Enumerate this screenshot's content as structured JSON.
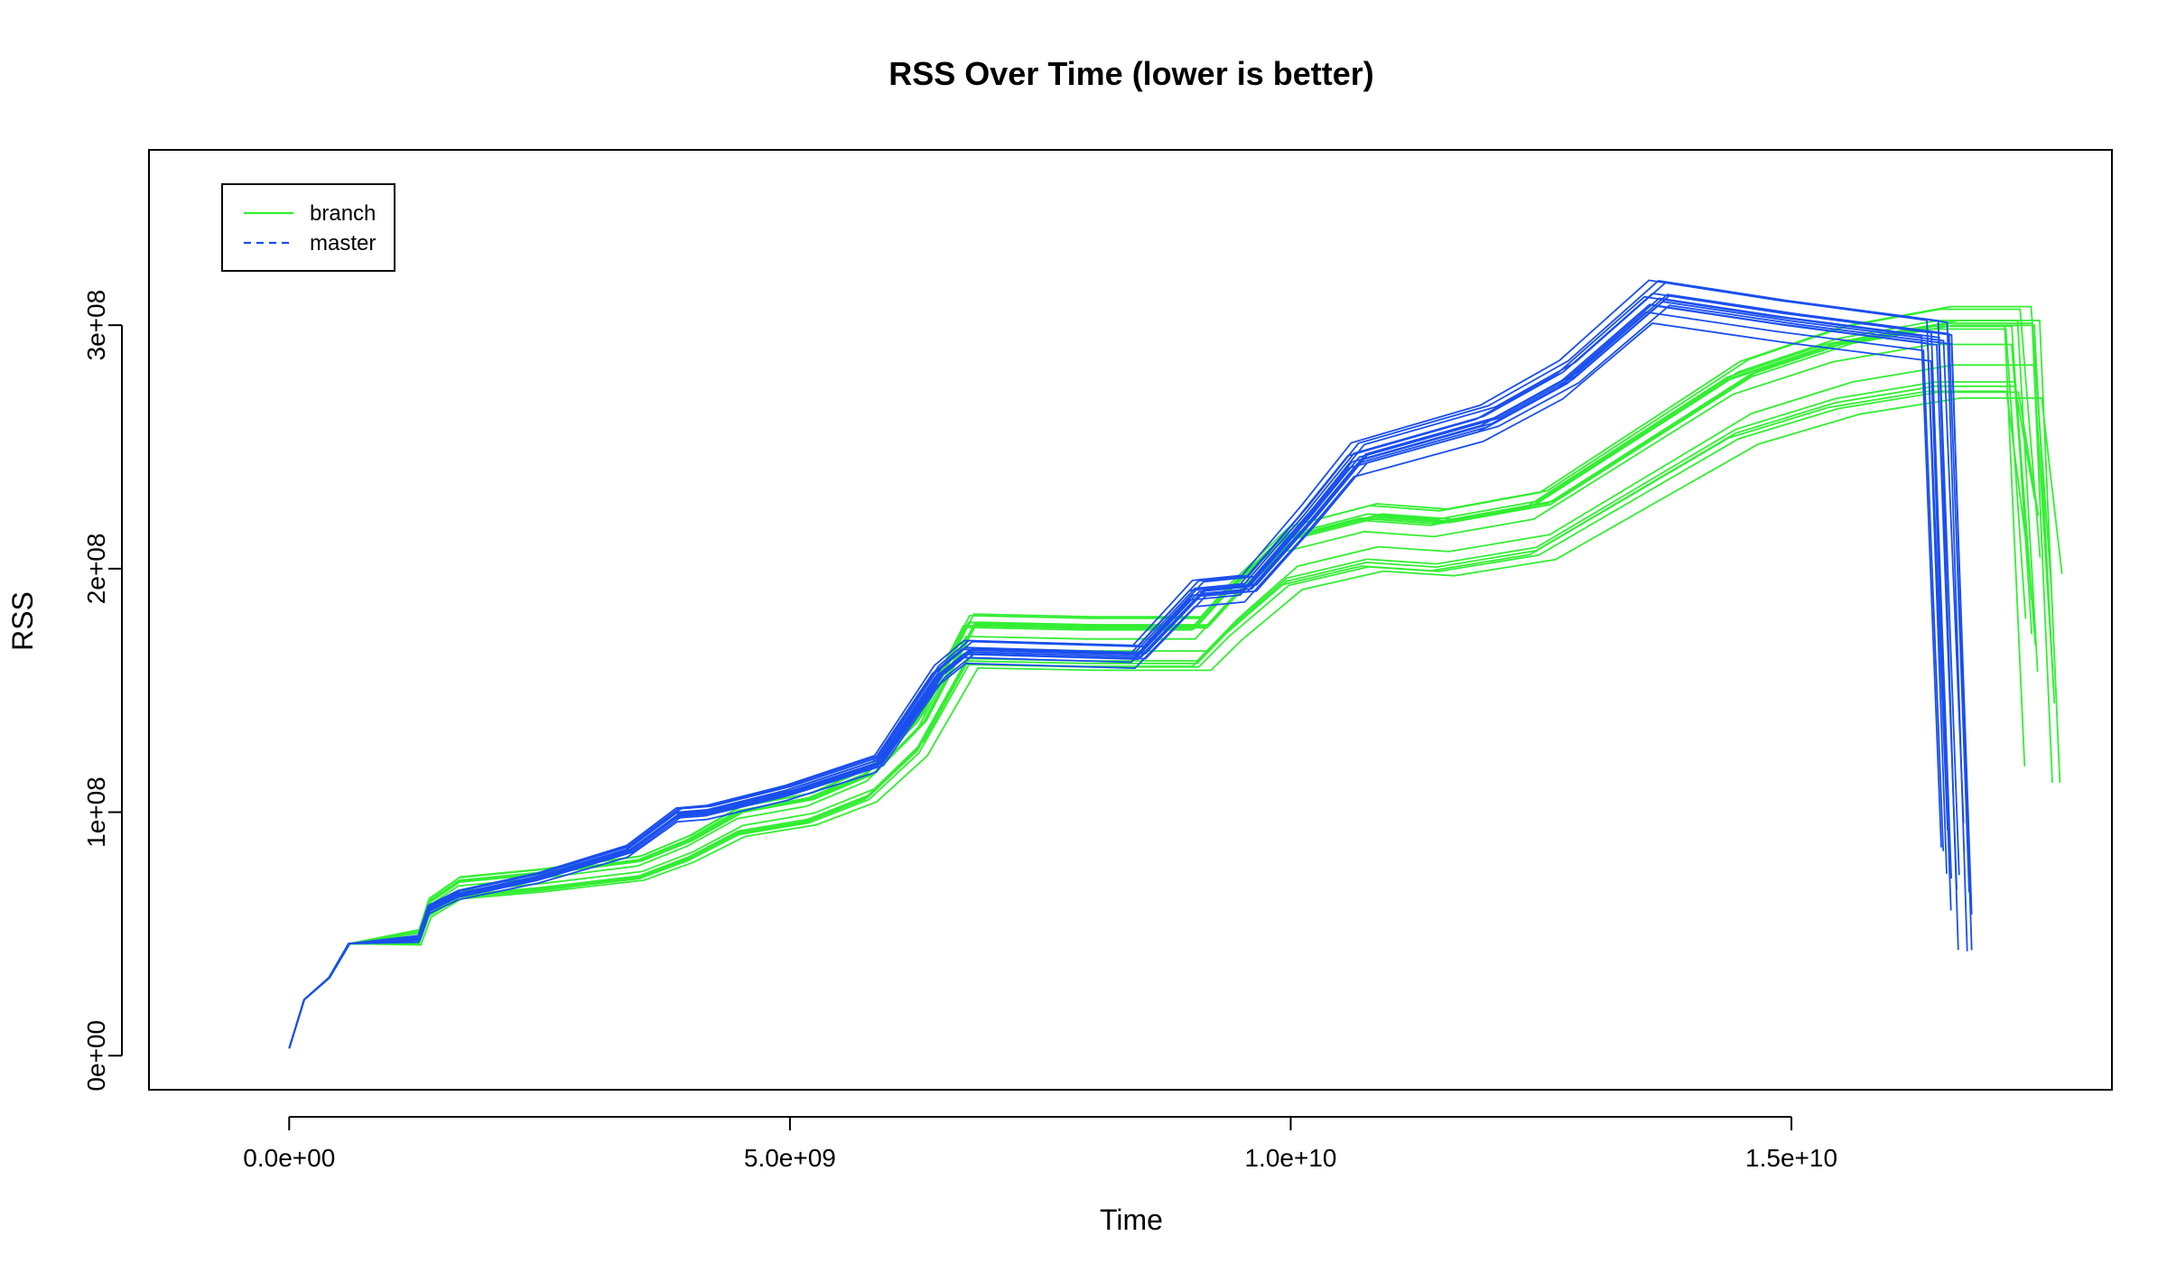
{
  "chart_data": {
    "type": "line",
    "title": "RSS Over Time (lower is better)",
    "xlabel": "Time",
    "ylabel": "RSS",
    "xlim": [
      -1400000000.0,
      18200000000.0
    ],
    "ylim": [
      -14000000.0,
      372000000.0
    ],
    "x_ticks": [
      0,
      5000000000.0,
      10000000000.0,
      15000000000.0
    ],
    "x_tick_labels": [
      "0.0e+00",
      "5.0e+09",
      "1.0e+10",
      "1.5e+10"
    ],
    "y_ticks": [
      0,
      100000000.0,
      200000000.0,
      300000000.0
    ],
    "y_tick_labels": [
      "0e+00",
      "1e+08",
      "2e+08",
      "3e+08"
    ],
    "grid": false,
    "legend_position": "top-left",
    "legend": [
      {
        "name": "branch",
        "color": "#33ee33",
        "line": "solid"
      },
      {
        "name": "master",
        "color": "#1a4fee",
        "line": "dashed"
      }
    ],
    "series": [
      {
        "name": "branch",
        "color": "#33ee33",
        "runs": 16,
        "representative": [
          [
            0,
            3000000.0
          ],
          [
            150000000.0,
            23000000.0
          ],
          [
            400000000.0,
            32000000.0
          ],
          [
            600000000.0,
            46000000.0
          ],
          [
            1300000000.0,
            48000000.0
          ],
          [
            1400000000.0,
            60000000.0
          ],
          [
            1700000000.0,
            68000000.0
          ],
          [
            2500000000.0,
            71000000.0
          ],
          [
            3500000000.0,
            76000000.0
          ],
          [
            4000000000.0,
            84000000.0
          ],
          [
            4500000000.0,
            95000000.0
          ],
          [
            5200000000.0,
            100000000.0
          ],
          [
            5800000000.0,
            110000000.0
          ],
          [
            6300000000.0,
            130000000.0
          ],
          [
            6800000000.0,
            168000000.0
          ],
          [
            8000000000.0,
            167000000.0
          ],
          [
            9100000000.0,
            167000000.0
          ],
          [
            9400000000.0,
            180000000.0
          ],
          [
            10000000000.0,
            202000000.0
          ],
          [
            10800000000.0,
            210000000.0
          ],
          [
            11500000000.0,
            208000000.0
          ],
          [
            12500000000.0,
            215000000.0
          ],
          [
            13500000000.0,
            240000000.0
          ],
          [
            14500000000.0,
            265000000.0
          ],
          [
            15500000000.0,
            278000000.0
          ],
          [
            16500000000.0,
            285000000.0
          ],
          [
            17300000000.0,
            285000000.0
          ],
          [
            17500000000.0,
            160000000.0
          ]
        ]
      },
      {
        "name": "master",
        "color": "#1a4fee",
        "runs": 14,
        "representative": [
          [
            0,
            3000000.0
          ],
          [
            150000000.0,
            23000000.0
          ],
          [
            400000000.0,
            32000000.0
          ],
          [
            600000000.0,
            46000000.0
          ],
          [
            1300000000.0,
            48000000.0
          ],
          [
            1400000000.0,
            60000000.0
          ],
          [
            1700000000.0,
            66000000.0
          ],
          [
            2500000000.0,
            73000000.0
          ],
          [
            3400000000.0,
            84000000.0
          ],
          [
            3900000000.0,
            99000000.0
          ],
          [
            4200000000.0,
            100000000.0
          ],
          [
            5000000000.0,
            108000000.0
          ],
          [
            5900000000.0,
            120000000.0
          ],
          [
            6500000000.0,
            156000000.0
          ],
          [
            6800000000.0,
            166000000.0
          ],
          [
            8500000000.0,
            164000000.0
          ],
          [
            9100000000.0,
            190000000.0
          ],
          [
            9600000000.0,
            192000000.0
          ],
          [
            10200000000.0,
            220000000.0
          ],
          [
            10700000000.0,
            245000000.0
          ],
          [
            12000000000.0,
            260000000.0
          ],
          [
            12800000000.0,
            278000000.0
          ],
          [
            13700000000.0,
            310000000.0
          ],
          [
            15000000000.0,
            302000000.0
          ],
          [
            16500000000.0,
            294000000.0
          ],
          [
            16700000000.0,
            70000000.0
          ]
        ]
      }
    ]
  }
}
